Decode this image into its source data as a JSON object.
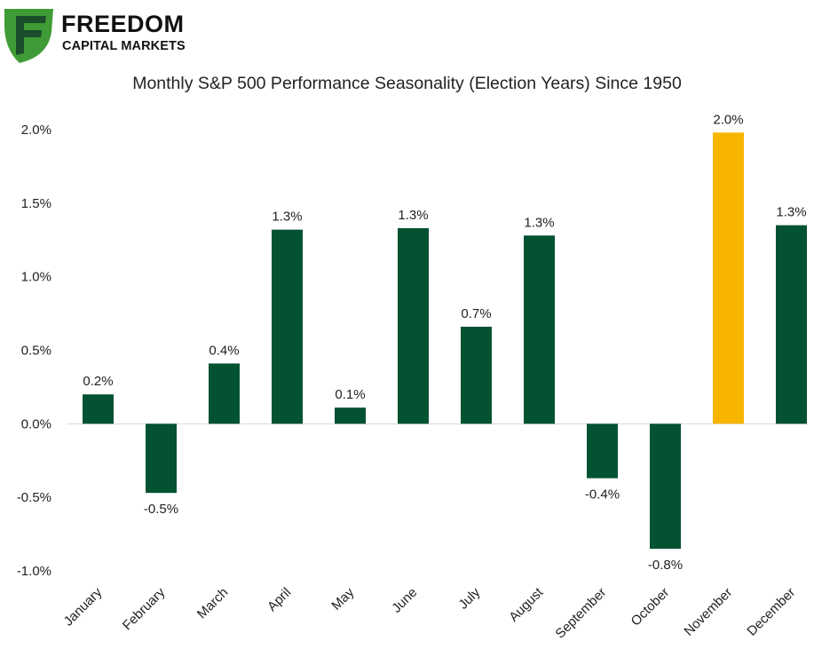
{
  "brand": {
    "name_line1": "FREEDOM",
    "name_line2": "CAPITAL MARKETS",
    "colors": {
      "logo_green": "#3f9b35",
      "logo_dark": "#1a4d2a"
    }
  },
  "chart_data": {
    "type": "bar",
    "title": "Monthly S&P 500 Performance Seasonality (Election Years) Since 1950",
    "categories": [
      "January",
      "February",
      "March",
      "April",
      "May",
      "June",
      "July",
      "August",
      "September",
      "October",
      "November",
      "December"
    ],
    "values": [
      0.2,
      -0.47,
      0.41,
      1.32,
      0.11,
      1.33,
      0.66,
      1.28,
      -0.37,
      -0.85,
      1.98,
      1.35
    ],
    "data_labels": [
      "0.2%",
      "-0.5%",
      "0.4%",
      "1.3%",
      "0.1%",
      "1.3%",
      "0.7%",
      "1.3%",
      "-0.4%",
      "-0.8%",
      "2.0%",
      "1.3%"
    ],
    "y_ticks": [
      2.0,
      1.5,
      1.0,
      0.5,
      0.0,
      -0.5,
      -1.0
    ],
    "y_tick_labels": [
      "2.0%",
      "1.5%",
      "1.0%",
      "0.5%",
      "0.0%",
      "-0.5%",
      "-1.0%"
    ],
    "ylim": [
      -1.0,
      2.0
    ],
    "grid": false,
    "legend": "none",
    "colors": {
      "bar": "#035232",
      "highlight": "#f7b500",
      "highlight_category": "November",
      "axis": "#d9d9d9"
    }
  }
}
